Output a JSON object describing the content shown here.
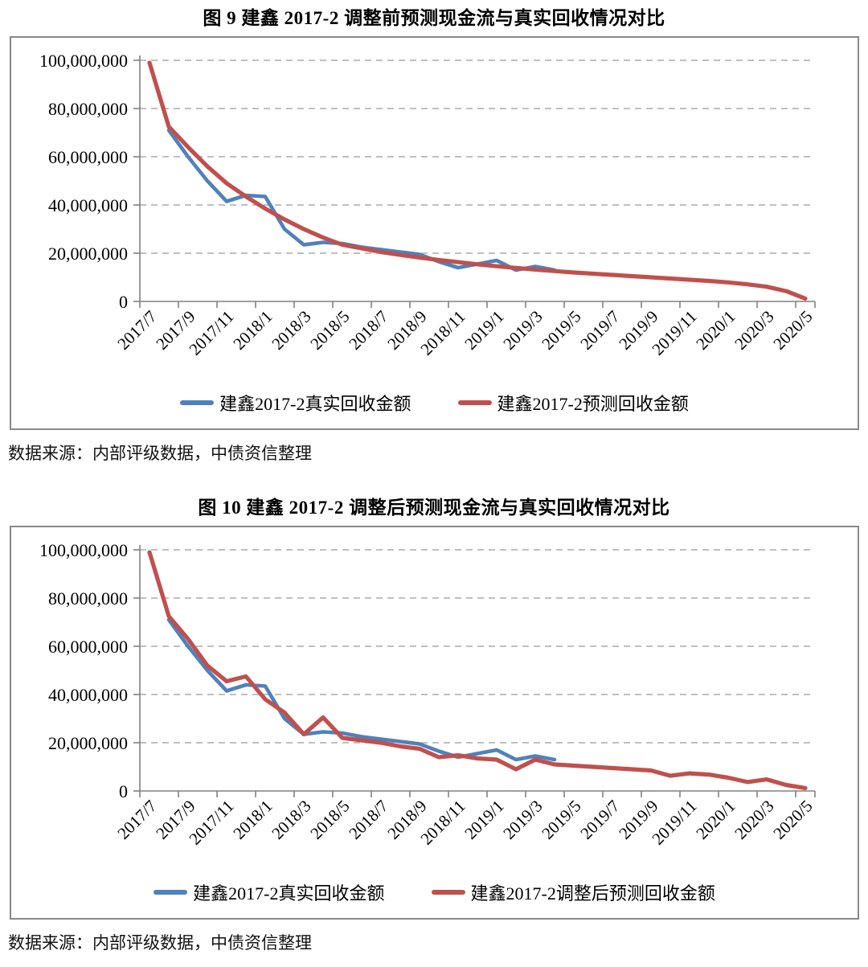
{
  "page": {
    "background": "#ffffff",
    "accent_blue": "#4F81BD",
    "accent_red": "#C0504D",
    "gridline_color": "#ACACAC",
    "axis_color": "#808080",
    "box_border_color": "#898989"
  },
  "figures": [
    {
      "title": "图 9  建鑫 2017-2 调整前预测现金流与真实回收情况对比",
      "source_note": "数据来源：内部评级数据，中债资信整理"
    },
    {
      "title": "图 10  建鑫 2017-2 调整后预测现金流与真实回收情况对比",
      "source_note": "数据来源：内部评级数据，中债资信整理"
    }
  ],
  "chart_data": [
    {
      "type": "line",
      "title": "图 9 建鑫 2017-2 调整前预测现金流与真实回收情况对比",
      "grid": "horizontal-dashed",
      "legend_position": "bottom",
      "x": [
        "2017/7",
        "2017/8",
        "2017/9",
        "2017/10",
        "2017/11",
        "2017/12",
        "2018/1",
        "2018/2",
        "2018/3",
        "2018/4",
        "2018/5",
        "2018/6",
        "2018/7",
        "2018/8",
        "2018/9",
        "2018/10",
        "2018/11",
        "2018/12",
        "2019/1",
        "2019/2",
        "2019/3",
        "2019/4",
        "2019/5",
        "2019/6",
        "2019/7",
        "2019/8",
        "2019/9",
        "2019/10",
        "2019/11",
        "2019/12",
        "2020/1",
        "2020/2",
        "2020/3",
        "2020/4",
        "2020/5"
      ],
      "x_axis_tick_labels": [
        "2017/7",
        "2017/9",
        "2017/11",
        "2018/1",
        "2018/3",
        "2018/5",
        "2018/7",
        "2018/9",
        "2018/11",
        "2019/1",
        "2019/3",
        "2019/5",
        "2019/7",
        "2019/9",
        "2019/11",
        "2020/1",
        "2020/3",
        "2020/5"
      ],
      "y_axis": {
        "min": 0,
        "max": 100000000,
        "tick_interval": 20000000,
        "ticks": [
          0,
          20000000,
          40000000,
          60000000,
          80000000,
          100000000
        ],
        "tick_labels": [
          "0",
          "20,000,000",
          "40,000,000",
          "60,000,000",
          "80,000,000",
          "100,000,000"
        ]
      },
      "series": [
        {
          "name": "建鑫2017-2真实回收金额",
          "color": "#4F81BD",
          "values": [
            null,
            71000000,
            60000000,
            50000000,
            41500000,
            44000000,
            43500000,
            30000000,
            23500000,
            24500000,
            24000000,
            22500000,
            21500000,
            20500000,
            19500000,
            16500000,
            14000000,
            15500000,
            17000000,
            13000000,
            14500000,
            13000000,
            null,
            null,
            null,
            null,
            null,
            null,
            null,
            null,
            null,
            null,
            null,
            null,
            null
          ]
        },
        {
          "name": "建鑫2017-2预测回收金额",
          "color": "#C0504D",
          "values": [
            99000000,
            72500000,
            64000000,
            56000000,
            49000000,
            43500000,
            38500000,
            34000000,
            30000000,
            26500000,
            23500000,
            22000000,
            20500000,
            19300000,
            18200000,
            17200000,
            16300000,
            15400000,
            14600000,
            13900000,
            13200000,
            12600000,
            12000000,
            11500000,
            11000000,
            10500000,
            10000000,
            9500000,
            9000000,
            8500000,
            7900000,
            7100000,
            6100000,
            4300000,
            1200000
          ]
        }
      ]
    },
    {
      "type": "line",
      "title": "图 10 建鑫 2017-2 调整后预测现金流与真实回收情况对比",
      "grid": "horizontal-dashed",
      "legend_position": "bottom",
      "x": [
        "2017/7",
        "2017/8",
        "2017/9",
        "2017/10",
        "2017/11",
        "2017/12",
        "2018/1",
        "2018/2",
        "2018/3",
        "2018/4",
        "2018/5",
        "2018/6",
        "2018/7",
        "2018/8",
        "2018/9",
        "2018/10",
        "2018/11",
        "2018/12",
        "2019/1",
        "2019/2",
        "2019/3",
        "2019/4",
        "2019/5",
        "2019/6",
        "2019/7",
        "2019/8",
        "2019/9",
        "2019/10",
        "2019/11",
        "2019/12",
        "2020/1",
        "2020/2",
        "2020/3",
        "2020/4",
        "2020/5"
      ],
      "x_axis_tick_labels": [
        "2017/7",
        "2017/9",
        "2017/11",
        "2018/1",
        "2018/3",
        "2018/5",
        "2018/7",
        "2018/9",
        "2018/11",
        "2019/1",
        "2019/3",
        "2019/5",
        "2019/7",
        "2019/9",
        "2019/11",
        "2020/1",
        "2020/3",
        "2020/5"
      ],
      "y_axis": {
        "min": 0,
        "max": 100000000,
        "tick_interval": 20000000,
        "ticks": [
          0,
          20000000,
          40000000,
          60000000,
          80000000,
          100000000
        ],
        "tick_labels": [
          "0",
          "20,000,000",
          "40,000,000",
          "60,000,000",
          "80,000,000",
          "100,000,000"
        ]
      },
      "series": [
        {
          "name": "建鑫2017-2真实回收金额",
          "color": "#4F81BD",
          "values": [
            null,
            71000000,
            60000000,
            50000000,
            41500000,
            44000000,
            43500000,
            30000000,
            23500000,
            24500000,
            24000000,
            22500000,
            21500000,
            20500000,
            19500000,
            16500000,
            14000000,
            15500000,
            17000000,
            13000000,
            14500000,
            13000000,
            null,
            null,
            null,
            null,
            null,
            null,
            null,
            null,
            null,
            null,
            null,
            null,
            null
          ]
        },
        {
          "name": "建鑫2017-2调整后预测回收金额",
          "color": "#C0504D",
          "values": [
            99000000,
            72500000,
            63000000,
            52000000,
            45500000,
            47500000,
            38000000,
            32500000,
            23500000,
            30500000,
            22000000,
            21000000,
            20000000,
            18500000,
            17500000,
            14000000,
            14800000,
            13500000,
            13000000,
            9000000,
            13000000,
            11000000,
            10500000,
            10000000,
            9500000,
            9000000,
            8500000,
            6300000,
            7300000,
            6800000,
            5500000,
            3700000,
            4800000,
            2500000,
            1200000
          ]
        }
      ]
    }
  ]
}
